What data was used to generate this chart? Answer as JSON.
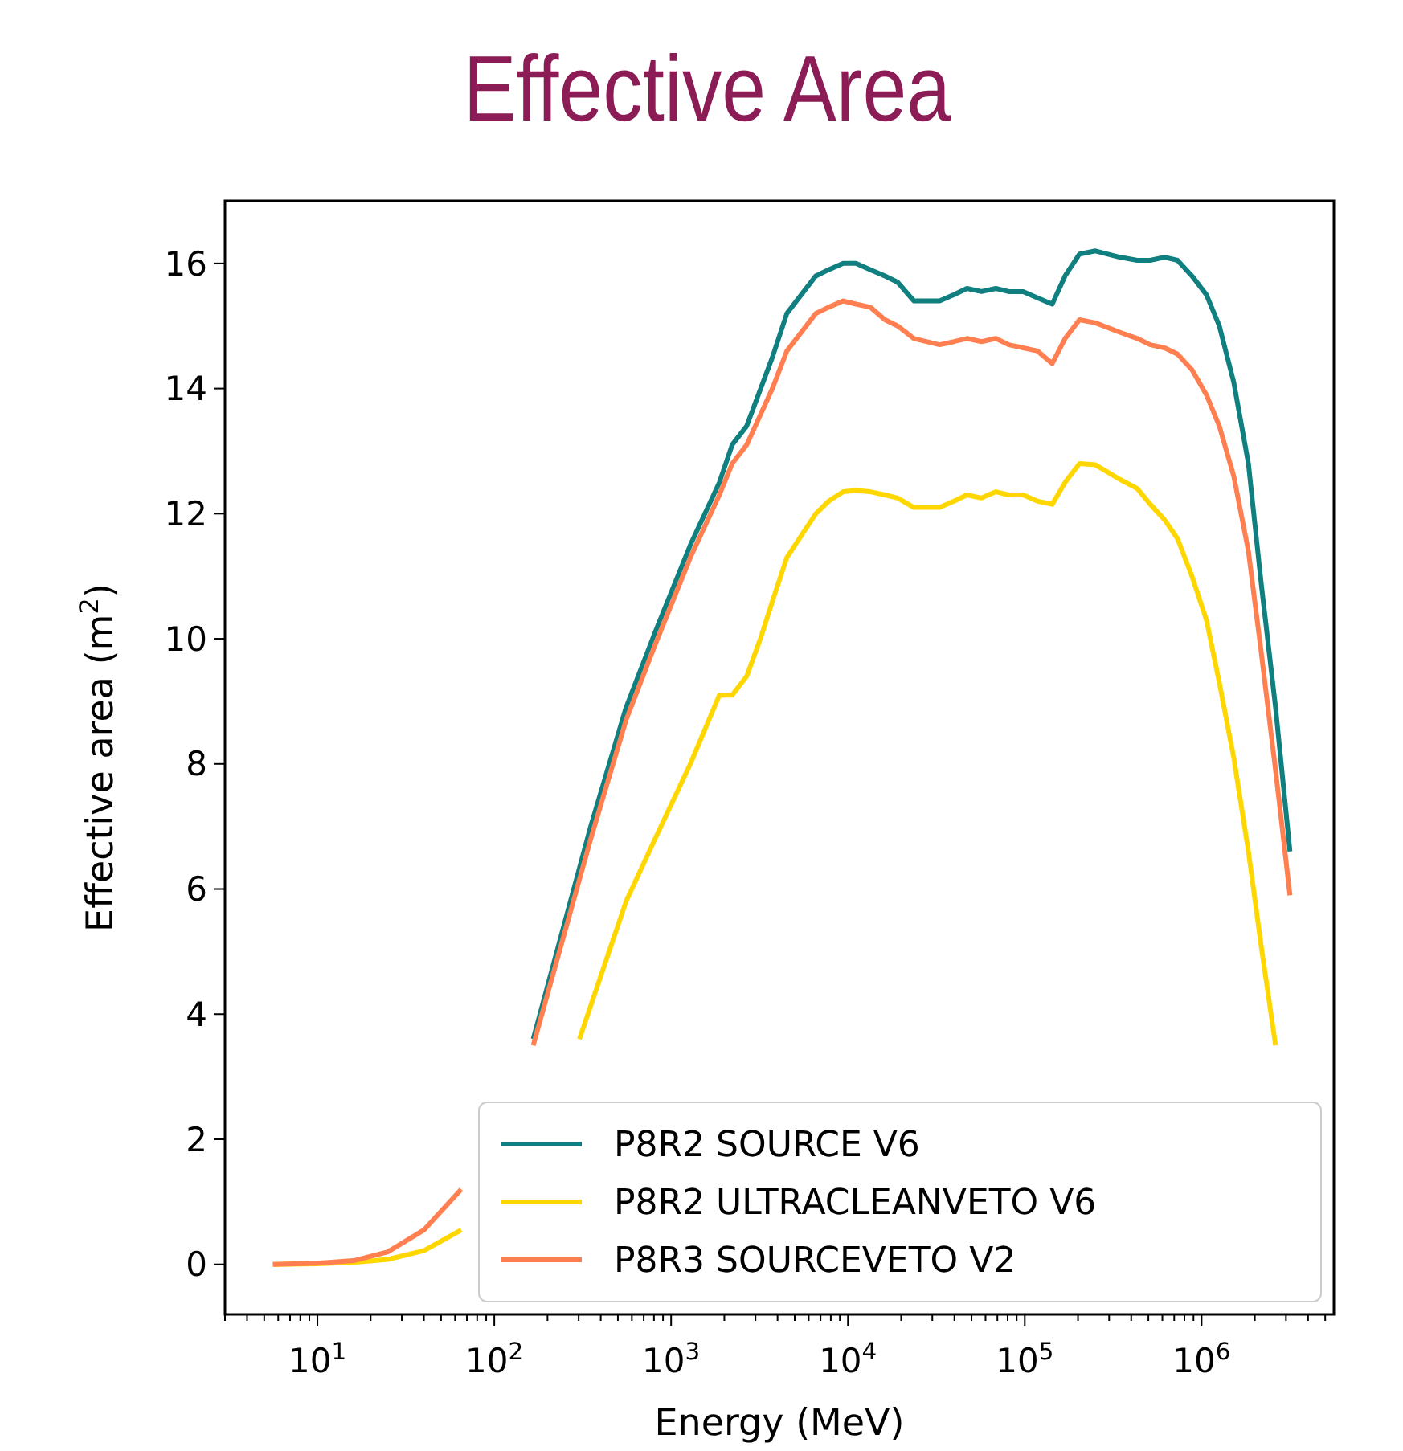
{
  "chart_data": {
    "type": "line",
    "title": "Effective Area",
    "xlabel": "Energy (MeV)",
    "ylabel": "Effective area (m$^{2}$)",
    "log": "x",
    "legend": "bottom right",
    "line_style": "solid",
    "marker": "none",
    "grid": false,
    "xlim": [
      3,
      5600000
    ],
    "ylim": [
      -0.8,
      17
    ],
    "yticks": [
      0,
      2,
      4,
      6,
      8,
      10,
      12,
      14,
      16
    ],
    "xticks": [
      {
        "value": 3,
        "label": null
      },
      {
        "value": 4,
        "label": null
      },
      {
        "value": 5,
        "label": null
      },
      {
        "value": 6,
        "label": null
      },
      {
        "value": 7,
        "label": null
      },
      {
        "value": 8,
        "label": null
      },
      {
        "value": 9,
        "label": null
      },
      {
        "value": 10,
        "label": "10$^{1}$"
      },
      {
        "value": 20,
        "label": null
      },
      {
        "value": 30,
        "label": null
      },
      {
        "value": 40,
        "label": null
      },
      {
        "value": 50,
        "label": null
      },
      {
        "value": 60,
        "label": null
      },
      {
        "value": 70,
        "label": null
      },
      {
        "value": 80,
        "label": null
      },
      {
        "value": 90,
        "label": null
      },
      {
        "value": 100,
        "label": "10$^{2}$"
      },
      {
        "value": 200,
        "label": null
      },
      {
        "value": 300,
        "label": null
      },
      {
        "value": 400,
        "label": null
      },
      {
        "value": 500,
        "label": null
      },
      {
        "value": 600,
        "label": null
      },
      {
        "value": 700,
        "label": null
      },
      {
        "value": 800,
        "label": null
      },
      {
        "value": 900,
        "label": null
      },
      {
        "value": 1000,
        "label": "10$^{3}$"
      },
      {
        "value": 2000,
        "label": null
      },
      {
        "value": 3000,
        "label": null
      },
      {
        "value": 4000,
        "label": null
      },
      {
        "value": 5000,
        "label": null
      },
      {
        "value": 6000,
        "label": null
      },
      {
        "value": 7000,
        "label": null
      },
      {
        "value": 8000,
        "label": null
      },
      {
        "value": 9000,
        "label": null
      },
      {
        "value": 10000,
        "label": "10$^{4}$"
      },
      {
        "value": 20000,
        "label": null
      },
      {
        "value": 30000,
        "label": null
      },
      {
        "value": 40000,
        "label": null
      },
      {
        "value": 50000,
        "label": null
      },
      {
        "value": 60000,
        "label": null
      },
      {
        "value": 70000,
        "label": null
      },
      {
        "value": 80000,
        "label": null
      },
      {
        "value": 90000,
        "label": null
      },
      {
        "value": 100000,
        "label": "10$^{5}$"
      },
      {
        "value": 200000,
        "label": null
      },
      {
        "value": 300000,
        "label": null
      },
      {
        "value": 400000,
        "label": null
      },
      {
        "value": 500000,
        "label": null
      },
      {
        "value": 600000,
        "label": null
      },
      {
        "value": 700000,
        "label": null
      },
      {
        "value": 800000,
        "label": null
      },
      {
        "value": 900000,
        "label": null
      },
      {
        "value": 1000000,
        "label": "10$^{6}$"
      },
      {
        "value": 2000000,
        "label": null
      },
      {
        "value": 3000000,
        "label": null
      },
      {
        "value": 4000000,
        "label": null
      },
      {
        "value": 5000000,
        "label": null
      }
    ],
    "series": [
      {
        "name": "P8R2 SOURCE V6",
        "color": "#0f7f7f",
        "x": [
          166,
          351,
          556,
          811,
          1285,
          1875,
          2215,
          2675,
          3740,
          4515,
          6580,
          7780,
          9400,
          11100,
          13400,
          16200,
          19100,
          23600,
          33000,
          39800,
          47100,
          56900,
          68600,
          81100,
          98000,
          118000,
          143000,
          169000,
          204000,
          251000,
          344000,
          433000,
          512000,
          618000,
          731000,
          882000,
          1065000,
          1260000,
          1520000,
          1840000,
          2170000,
          2620000,
          3160000
        ],
        "values": [
          3.6,
          7.0,
          8.9,
          10.1,
          11.5,
          12.5,
          13.1,
          13.4,
          14.5,
          15.2,
          15.8,
          15.9,
          16.0,
          16.0,
          15.9,
          15.8,
          15.7,
          15.4,
          15.4,
          15.5,
          15.6,
          15.55,
          15.6,
          15.55,
          15.55,
          15.45,
          15.35,
          15.8,
          16.15,
          16.2,
          16.1,
          16.05,
          16.05,
          16.1,
          16.05,
          15.8,
          15.5,
          15.0,
          14.1,
          12.8,
          10.9,
          8.9,
          6.6
        ]
      },
      {
        "name": "P8R2 ULTRACLEANVETO V6",
        "color": "#ffd700",
        "x": [
          5.6,
          10,
          16,
          25,
          40,
          65,
          105,
          303,
          556,
          811,
          1285,
          1875,
          2215,
          2675,
          3200,
          3740,
          4515,
          6580,
          7780,
          9400,
          11100,
          13400,
          16200,
          19100,
          23600,
          33000,
          39800,
          47100,
          56900,
          68600,
          81100,
          98000,
          118000,
          143000,
          169000,
          204000,
          251000,
          344000,
          433000,
          512000,
          618000,
          731000,
          882000,
          1065000,
          1260000,
          1520000,
          1840000,
          2170000,
          2620000
        ],
        "values": [
          0,
          0.01,
          0.03,
          0.08,
          0.22,
          0.55,
          null,
          3.6,
          5.8,
          6.8,
          8.0,
          9.1,
          9.1,
          9.4,
          10.0,
          10.6,
          11.3,
          12.0,
          12.2,
          12.35,
          12.37,
          12.35,
          12.3,
          12.25,
          12.1,
          12.1,
          12.2,
          12.3,
          12.25,
          12.35,
          12.3,
          12.3,
          12.2,
          12.15,
          12.5,
          12.8,
          12.78,
          12.55,
          12.4,
          12.15,
          11.9,
          11.6,
          11.0,
          10.3,
          9.3,
          8.1,
          6.6,
          5.1,
          3.5
        ]
      },
      {
        "name": "P8R3 SOURCEVETO V2",
        "color": "#ff7f50",
        "x": [
          5.6,
          10,
          16,
          25,
          40,
          65,
          105,
          166,
          351,
          556,
          811,
          1285,
          1875,
          2215,
          2675,
          3740,
          4515,
          6580,
          7780,
          9400,
          11100,
          13400,
          16200,
          19100,
          23600,
          33000,
          39800,
          47100,
          56900,
          68600,
          81100,
          98000,
          118000,
          143000,
          169000,
          204000,
          251000,
          344000,
          433000,
          512000,
          618000,
          731000,
          882000,
          1065000,
          1260000,
          1520000,
          1840000,
          2170000,
          2620000,
          3160000
        ],
        "values": [
          0,
          0.02,
          0.06,
          0.2,
          0.55,
          1.2,
          null,
          3.5,
          6.8,
          8.7,
          9.9,
          11.3,
          12.3,
          12.8,
          13.1,
          14.0,
          14.6,
          15.2,
          15.3,
          15.4,
          15.35,
          15.3,
          15.1,
          15.0,
          14.8,
          14.7,
          14.75,
          14.8,
          14.75,
          14.8,
          14.7,
          14.65,
          14.6,
          14.4,
          14.8,
          15.1,
          15.05,
          14.9,
          14.8,
          14.7,
          14.65,
          14.55,
          14.3,
          13.9,
          13.4,
          12.6,
          11.4,
          9.8,
          7.9,
          5.9
        ]
      }
    ]
  }
}
